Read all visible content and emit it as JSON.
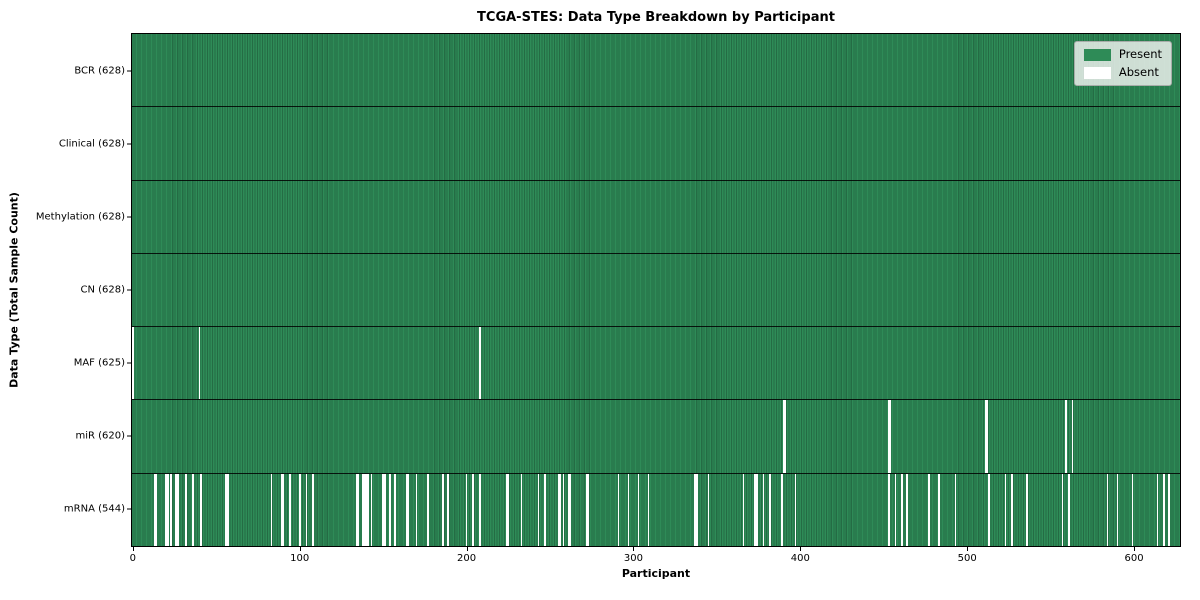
{
  "title": "TCGA-STES: Data Type Breakdown by Participant",
  "axes": {
    "xlabel": "Participant",
    "ylabel": "Data Type (Total Sample Count)",
    "x_ticks": [
      0,
      100,
      200,
      300,
      400,
      500,
      600
    ],
    "x_range": [
      -0.5,
      627.5
    ]
  },
  "legend": {
    "entries": [
      {
        "label": "Present",
        "color": "#2e8b57"
      },
      {
        "label": "Absent",
        "color": "#ffffff"
      }
    ]
  },
  "colors": {
    "present": "#2e8b57",
    "absent": "#ffffff",
    "stripe_overlay": "rgba(0,0,0,0.22)",
    "row_separator": "rgba(0,0,0,0.85)"
  },
  "chart_data": {
    "type": "heatmap",
    "n_participants": 628,
    "rows": [
      {
        "label": "BCR (628)",
        "present_count": 628,
        "absent_participants": []
      },
      {
        "label": "Clinical (628)",
        "present_count": 628,
        "absent_participants": []
      },
      {
        "label": "Methylation (628)",
        "present_count": 628,
        "absent_participants": []
      },
      {
        "label": "CN (628)",
        "present_count": 628,
        "absent_participants": []
      },
      {
        "label": "MAF (625)",
        "present_count": 625,
        "absent_participants": [
          0,
          40,
          208
        ]
      },
      {
        "label": "miR (620)",
        "present_count": 620,
        "absent_participants": [
          390,
          391,
          453,
          454,
          511,
          512,
          559,
          563
        ]
      },
      {
        "label": "mRNA (544)",
        "present_count": 544,
        "absent_participants": [
          13,
          14,
          20,
          21,
          23,
          26,
          27,
          32,
          36,
          41,
          56,
          57,
          83,
          89,
          90,
          94,
          100,
          104,
          108,
          134,
          135,
          138,
          139,
          140,
          141,
          143,
          150,
          151,
          154,
          157,
          164,
          165,
          170,
          177,
          186,
          189,
          200,
          204,
          208,
          224,
          225,
          233,
          243,
          247,
          255,
          256,
          258,
          261,
          262,
          272,
          273,
          291,
          297,
          303,
          309,
          337,
          338,
          345,
          366,
          373,
          374,
          378,
          382,
          389,
          397,
          453,
          457,
          461,
          464,
          477,
          483,
          493,
          513,
          523,
          527,
          536,
          557,
          561,
          584,
          590,
          599,
          614,
          618,
          621
        ]
      }
    ]
  }
}
